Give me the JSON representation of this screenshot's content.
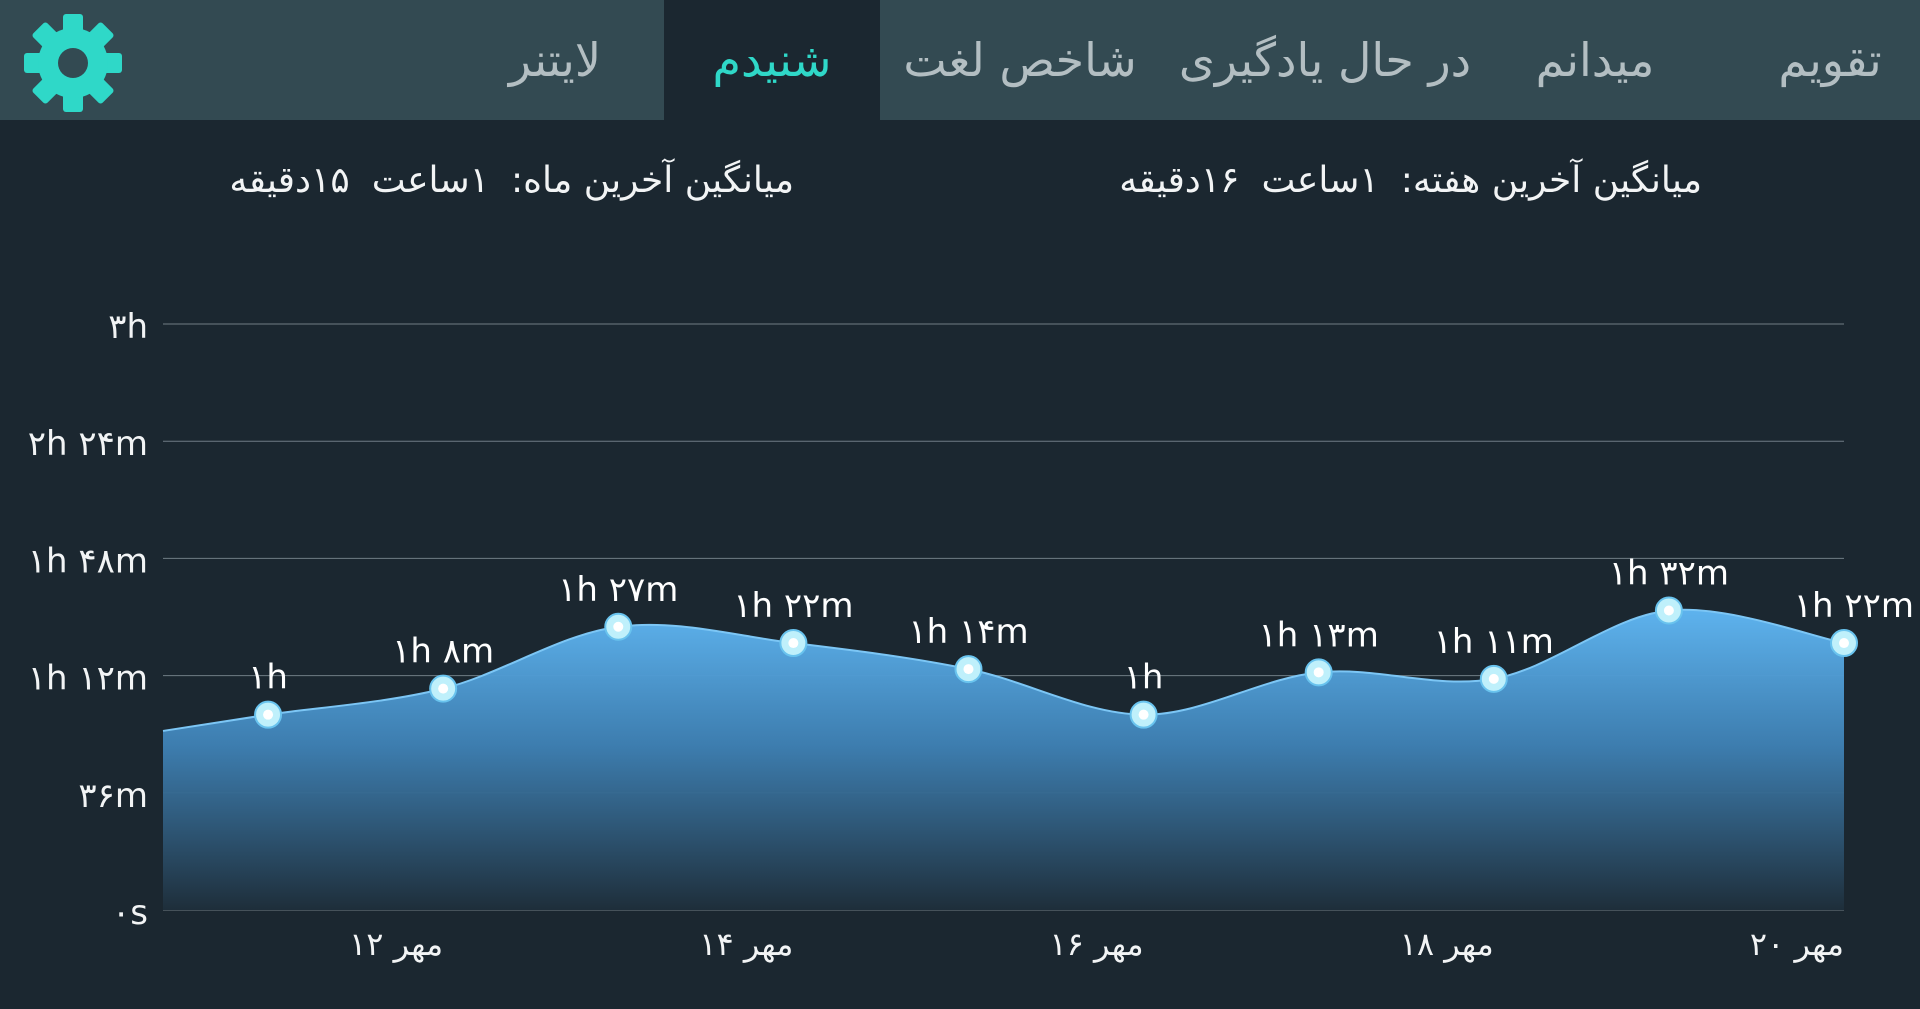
{
  "tabs": [
    {
      "label": "تقویم"
    },
    {
      "label": "میدانم"
    },
    {
      "label": "در حال یادگیری"
    },
    {
      "label": "شاخص لغت"
    },
    {
      "label": "شنیدم"
    },
    {
      "label": "لایتنر"
    }
  ],
  "active_tab": "شنیدم",
  "settings": {
    "icon": "gear-icon"
  },
  "colors": {
    "accent": "#2fd8c8",
    "topbar": "#334a52",
    "background": "#1b2730",
    "area": "#5eb3ee"
  },
  "averages": {
    "week": {
      "label": "میانگین آخرین هفته:",
      "hours": "۱ساعت",
      "minutes": "۱۶دقیقه"
    },
    "month": {
      "label": "میانگین آخرین ماه:",
      "hours": "۱ساعت",
      "minutes": "۱۵دقیقه"
    }
  },
  "chart_data": {
    "type": "area",
    "y_unit": "minutes",
    "ylim": [
      0,
      180
    ],
    "y_ticks": [
      {
        "value": 0,
        "label": "۰s"
      },
      {
        "value": 36,
        "label": "۳۶m"
      },
      {
        "value": 72,
        "label": "۱h ۱۲m"
      },
      {
        "value": 108,
        "label": "۱h ۴۸m"
      },
      {
        "value": 144,
        "label": "۲h ۲۴m"
      },
      {
        "value": 180,
        "label": "۳h"
      }
    ],
    "x_ticks": [
      {
        "day": 12,
        "label": "۱۲ مهر"
      },
      {
        "day": 14,
        "label": "۱۴ مهر"
      },
      {
        "day": 16,
        "label": "۱۶ مهر"
      },
      {
        "day": 18,
        "label": "۱۸ مهر"
      },
      {
        "day": 20,
        "label": "۲۰ مهر"
      }
    ],
    "xlim": [
      10.4,
      20
    ],
    "leading_value": 55,
    "points": [
      {
        "day": 11,
        "value": 60,
        "label": "۱h"
      },
      {
        "day": 12,
        "value": 68,
        "label": "۱h ۸m"
      },
      {
        "day": 13,
        "value": 87,
        "label": "۱h ۲۷m"
      },
      {
        "day": 14,
        "value": 82,
        "label": "۱h ۲۲m"
      },
      {
        "day": 15,
        "value": 74,
        "label": "۱h ۱۴m"
      },
      {
        "day": 16,
        "value": 60,
        "label": "۱h"
      },
      {
        "day": 17,
        "value": 73,
        "label": "۱h ۱۳m"
      },
      {
        "day": 18,
        "value": 71,
        "label": "۱h ۱۱m"
      },
      {
        "day": 19,
        "value": 92,
        "label": "۱h ۳۲m"
      },
      {
        "day": 20,
        "value": 82,
        "label": "۱h ۲۲m"
      }
    ],
    "grid": true,
    "legend": "none"
  }
}
